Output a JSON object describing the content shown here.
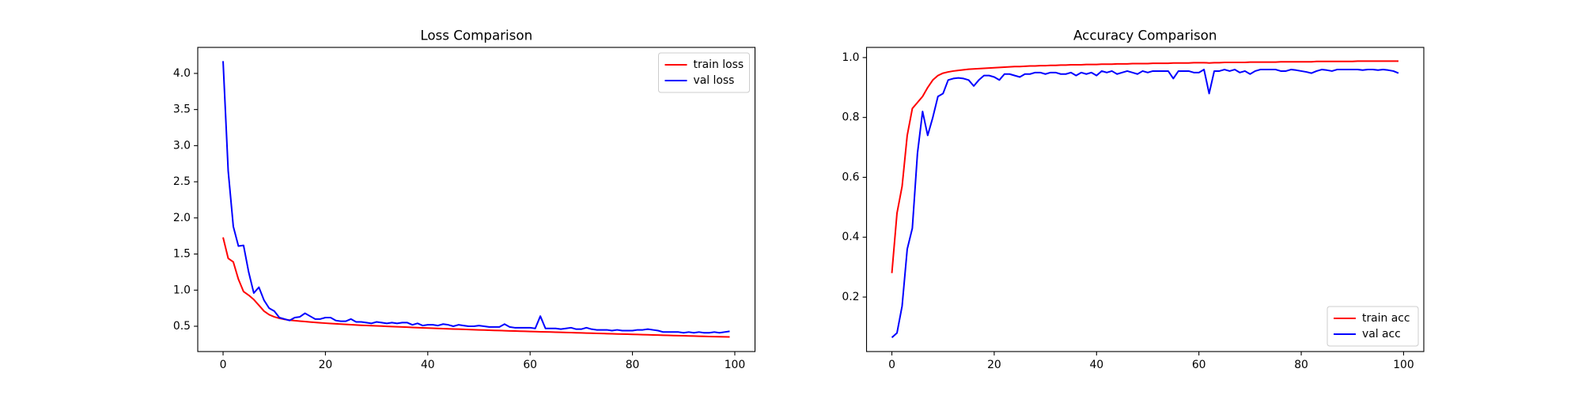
{
  "chart_data": [
    {
      "type": "line",
      "title": "Loss Comparison",
      "x": [
        0,
        1,
        2,
        3,
        4,
        5,
        6,
        7,
        8,
        9,
        10,
        11,
        12,
        13,
        14,
        15,
        16,
        17,
        18,
        19,
        20,
        21,
        22,
        23,
        24,
        25,
        26,
        27,
        28,
        29,
        30,
        31,
        32,
        33,
        34,
        35,
        36,
        37,
        38,
        39,
        40,
        41,
        42,
        43,
        44,
        45,
        46,
        47,
        48,
        49,
        50,
        51,
        52,
        53,
        54,
        55,
        56,
        57,
        58,
        59,
        60,
        61,
        62,
        63,
        64,
        65,
        66,
        67,
        68,
        69,
        70,
        71,
        72,
        73,
        74,
        75,
        76,
        77,
        78,
        79,
        80,
        81,
        82,
        83,
        84,
        85,
        86,
        87,
        88,
        89,
        90,
        91,
        92,
        93,
        94,
        95,
        96,
        97,
        98,
        99
      ],
      "series": [
        {
          "name": "train loss",
          "color": "#ff0000",
          "values": [
            1.73,
            1.44,
            1.39,
            1.15,
            0.98,
            0.93,
            0.87,
            0.79,
            0.71,
            0.66,
            0.63,
            0.61,
            0.595,
            0.585,
            0.578,
            0.571,
            0.565,
            0.559,
            0.553,
            0.548,
            0.543,
            0.538,
            0.534,
            0.53,
            0.526,
            0.522,
            0.518,
            0.514,
            0.511,
            0.508,
            0.505,
            0.502,
            0.499,
            0.496,
            0.493,
            0.49,
            0.487,
            0.484,
            0.481,
            0.478,
            0.475,
            0.472,
            0.47,
            0.467,
            0.465,
            0.462,
            0.46,
            0.457,
            0.455,
            0.452,
            0.45,
            0.448,
            0.445,
            0.443,
            0.441,
            0.439,
            0.436,
            0.434,
            0.432,
            0.43,
            0.428,
            0.426,
            0.424,
            0.422,
            0.42,
            0.418,
            0.416,
            0.414,
            0.412,
            0.41,
            0.408,
            0.406,
            0.404,
            0.402,
            0.4,
            0.398,
            0.396,
            0.394,
            0.392,
            0.39,
            0.388,
            0.386,
            0.384,
            0.382,
            0.38,
            0.378,
            0.376,
            0.374,
            0.372,
            0.37,
            0.368,
            0.366,
            0.364,
            0.362,
            0.36,
            0.358,
            0.356,
            0.355,
            0.354,
            0.353
          ]
        },
        {
          "name": "val loss",
          "color": "#0000ff",
          "values": [
            4.17,
            2.65,
            1.88,
            1.61,
            1.62,
            1.25,
            0.96,
            1.04,
            0.86,
            0.75,
            0.71,
            0.62,
            0.6,
            0.58,
            0.62,
            0.63,
            0.68,
            0.64,
            0.6,
            0.6,
            0.62,
            0.62,
            0.58,
            0.57,
            0.57,
            0.6,
            0.56,
            0.56,
            0.55,
            0.54,
            0.56,
            0.55,
            0.54,
            0.55,
            0.54,
            0.55,
            0.55,
            0.52,
            0.54,
            0.51,
            0.52,
            0.52,
            0.51,
            0.53,
            0.52,
            0.5,
            0.52,
            0.51,
            0.5,
            0.5,
            0.51,
            0.5,
            0.49,
            0.49,
            0.49,
            0.53,
            0.49,
            0.48,
            0.48,
            0.48,
            0.48,
            0.47,
            0.64,
            0.47,
            0.47,
            0.47,
            0.46,
            0.47,
            0.48,
            0.46,
            0.46,
            0.48,
            0.46,
            0.45,
            0.45,
            0.45,
            0.44,
            0.45,
            0.44,
            0.44,
            0.44,
            0.45,
            0.45,
            0.46,
            0.45,
            0.44,
            0.42,
            0.42,
            0.42,
            0.42,
            0.41,
            0.42,
            0.41,
            0.42,
            0.41,
            0.41,
            0.42,
            0.41,
            0.42,
            0.43
          ]
        }
      ],
      "xlim": [
        -4.95,
        103.95
      ],
      "ylim": [
        0.15,
        4.36
      ],
      "xticks": [
        0,
        20,
        40,
        60,
        80,
        100
      ],
      "yticks": [
        0.5,
        {
          "value": 1,
          "label": "1.0"
        },
        1.5,
        {
          "value": 2,
          "label": "2.0"
        },
        2.5,
        {
          "value": 3,
          "label": "3.0"
        },
        3.5,
        {
          "value": 4,
          "label": "4.0"
        }
      ],
      "legend": "upper right"
    },
    {
      "type": "line",
      "title": "Accuracy Comparison",
      "x": [
        0,
        1,
        2,
        3,
        4,
        5,
        6,
        7,
        8,
        9,
        10,
        11,
        12,
        13,
        14,
        15,
        16,
        17,
        18,
        19,
        20,
        21,
        22,
        23,
        24,
        25,
        26,
        27,
        28,
        29,
        30,
        31,
        32,
        33,
        34,
        35,
        36,
        37,
        38,
        39,
        40,
        41,
        42,
        43,
        44,
        45,
        46,
        47,
        48,
        49,
        50,
        51,
        52,
        53,
        54,
        55,
        56,
        57,
        58,
        59,
        60,
        61,
        62,
        63,
        64,
        65,
        66,
        67,
        68,
        69,
        70,
        71,
        72,
        73,
        74,
        75,
        76,
        77,
        78,
        79,
        80,
        81,
        82,
        83,
        84,
        85,
        86,
        87,
        88,
        89,
        90,
        91,
        92,
        93,
        94,
        95,
        96,
        97,
        98,
        99
      ],
      "series": [
        {
          "name": "train acc",
          "color": "#ff0000",
          "values": [
            0.28,
            0.48,
            0.57,
            0.74,
            0.83,
            0.85,
            0.87,
            0.9,
            0.925,
            0.94,
            0.948,
            0.952,
            0.955,
            0.957,
            0.959,
            0.961,
            0.962,
            0.963,
            0.964,
            0.965,
            0.966,
            0.967,
            0.968,
            0.969,
            0.97,
            0.97,
            0.971,
            0.972,
            0.972,
            0.973,
            0.973,
            0.974,
            0.974,
            0.975,
            0.975,
            0.976,
            0.976,
            0.976,
            0.977,
            0.977,
            0.977,
            0.978,
            0.978,
            0.978,
            0.979,
            0.979,
            0.979,
            0.98,
            0.98,
            0.98,
            0.98,
            0.981,
            0.981,
            0.981,
            0.981,
            0.982,
            0.982,
            0.982,
            0.982,
            0.983,
            0.983,
            0.983,
            0.982,
            0.983,
            0.983,
            0.984,
            0.984,
            0.984,
            0.984,
            0.984,
            0.985,
            0.985,
            0.985,
            0.985,
            0.985,
            0.985,
            0.986,
            0.986,
            0.986,
            0.986,
            0.986,
            0.986,
            0.986,
            0.987,
            0.987,
            0.987,
            0.987,
            0.987,
            0.987,
            0.987,
            0.987,
            0.988,
            0.988,
            0.988,
            0.988,
            0.988,
            0.988,
            0.988,
            0.988,
            0.988
          ]
        },
        {
          "name": "val acc",
          "color": "#0000ff",
          "values": [
            0.065,
            0.08,
            0.17,
            0.36,
            0.43,
            0.68,
            0.82,
            0.74,
            0.8,
            0.87,
            0.88,
            0.925,
            0.93,
            0.932,
            0.93,
            0.925,
            0.905,
            0.925,
            0.94,
            0.94,
            0.935,
            0.925,
            0.945,
            0.945,
            0.94,
            0.935,
            0.945,
            0.945,
            0.95,
            0.95,
            0.945,
            0.95,
            0.95,
            0.945,
            0.945,
            0.95,
            0.94,
            0.95,
            0.945,
            0.95,
            0.94,
            0.955,
            0.95,
            0.955,
            0.945,
            0.95,
            0.955,
            0.95,
            0.945,
            0.955,
            0.95,
            0.955,
            0.955,
            0.955,
            0.955,
            0.93,
            0.955,
            0.955,
            0.955,
            0.95,
            0.95,
            0.96,
            0.88,
            0.955,
            0.955,
            0.96,
            0.955,
            0.96,
            0.95,
            0.955,
            0.945,
            0.955,
            0.96,
            0.96,
            0.96,
            0.96,
            0.955,
            0.955,
            0.96,
            0.958,
            0.955,
            0.952,
            0.948,
            0.955,
            0.96,
            0.958,
            0.955,
            0.96,
            0.96,
            0.96,
            0.96,
            0.96,
            0.958,
            0.96,
            0.96,
            0.958,
            0.96,
            0.958,
            0.955,
            0.948
          ]
        }
      ],
      "xlim": [
        -4.95,
        103.95
      ],
      "ylim": [
        0.018,
        1.034
      ],
      "xticks": [
        0,
        20,
        40,
        60,
        80,
        100
      ],
      "yticks": [
        0.2,
        0.4,
        0.6,
        0.8,
        {
          "value": 1,
          "label": "1.0"
        }
      ],
      "legend": "lower right"
    }
  ]
}
